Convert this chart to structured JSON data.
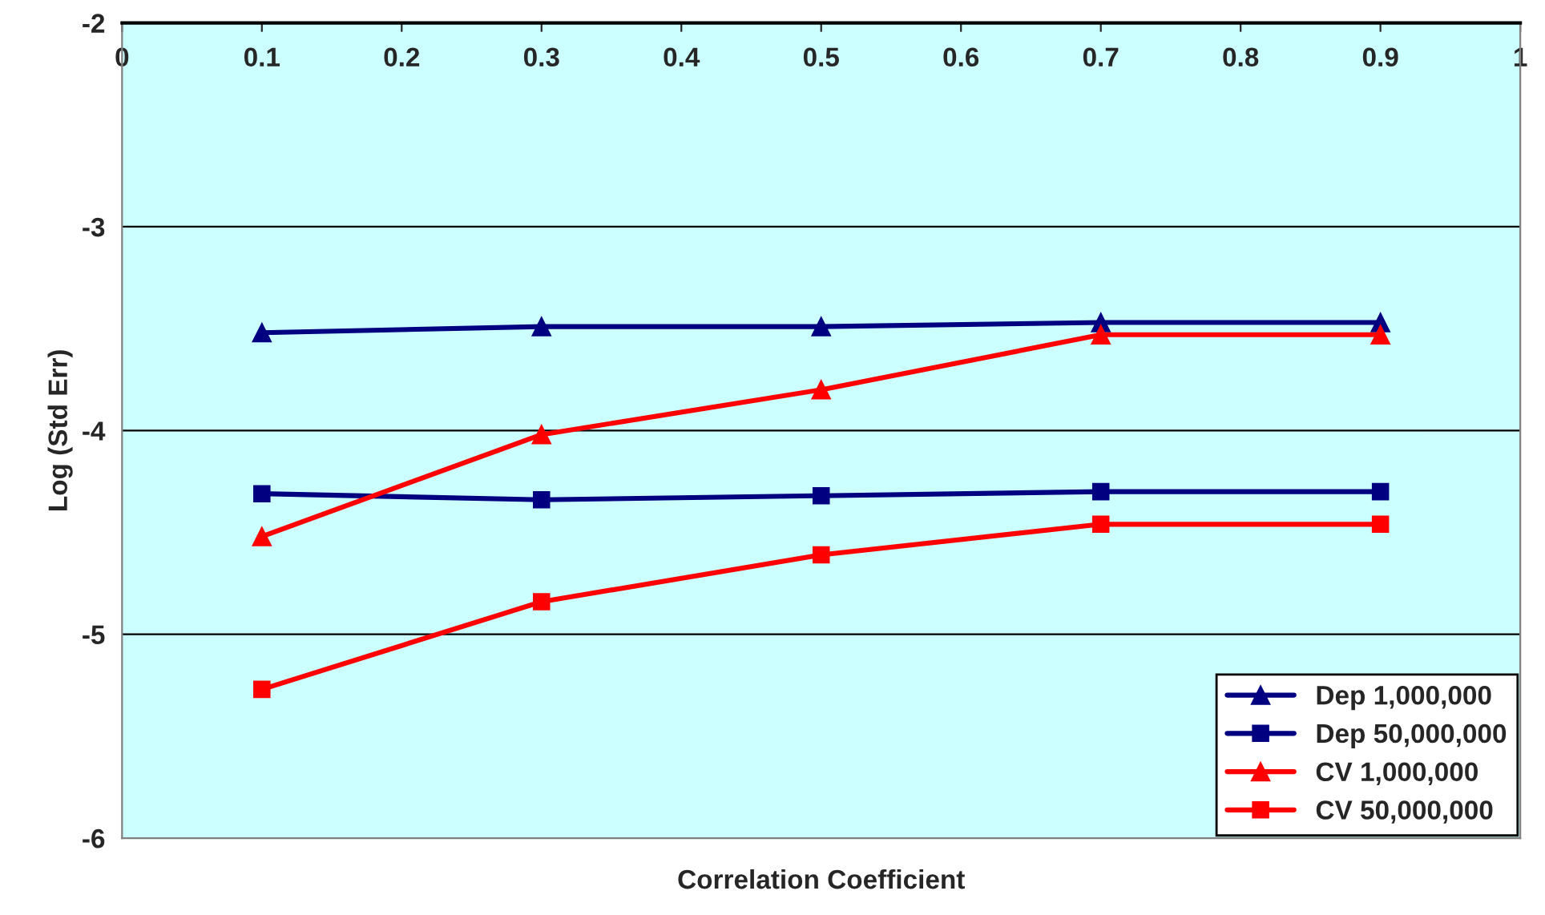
{
  "chart_data": {
    "type": "line",
    "xlabel": "Correlation Coefficient",
    "ylabel": "Log (Std Err)",
    "x": [
      0.1,
      0.3,
      0.5,
      0.7,
      0.9
    ],
    "xlim": [
      0,
      1
    ],
    "xticks": [
      0,
      0.1,
      0.2,
      0.3,
      0.4,
      0.5,
      0.6,
      0.7,
      0.8,
      0.9,
      1
    ],
    "ylim": [
      -6,
      -2
    ],
    "yticks": [
      -6,
      -5,
      -4,
      -3,
      -2
    ],
    "grid": "y",
    "legend": "bottom right",
    "line_style": "solid",
    "series": [
      {
        "name": "Dep 1,000,000",
        "color": "#000080",
        "marker": "triangle",
        "values": [
          -3.52,
          -3.49,
          -3.49,
          -3.47,
          -3.47
        ]
      },
      {
        "name": "Dep 50,000,000",
        "color": "#000080",
        "marker": "square",
        "values": [
          -4.31,
          -4.34,
          -4.32,
          -4.3,
          -4.3
        ]
      },
      {
        "name": "CV 1,000,000",
        "color": "#ff0000",
        "marker": "triangle",
        "values": [
          -4.52,
          -4.02,
          -3.8,
          -3.53,
          -3.53
        ]
      },
      {
        "name": "CV 50,000,000",
        "color": "#ff0000",
        "marker": "square",
        "values": [
          -5.27,
          -4.84,
          -4.61,
          -4.46,
          -4.46
        ]
      }
    ]
  }
}
